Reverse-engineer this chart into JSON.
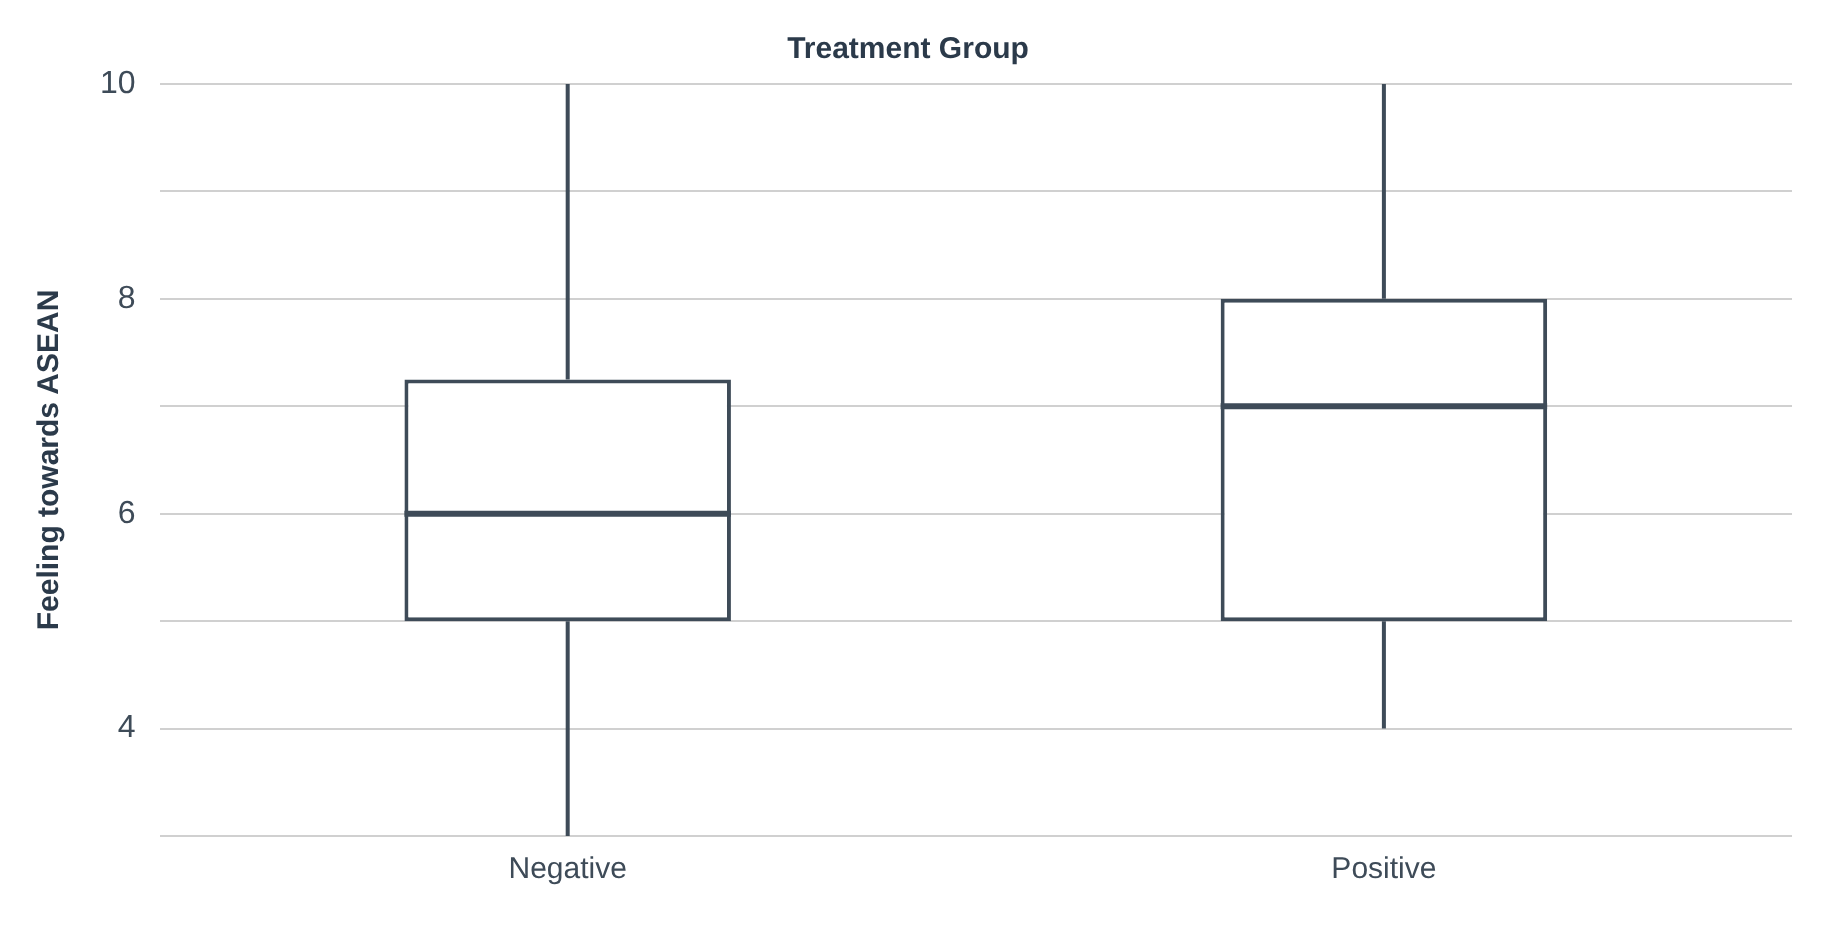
{
  "chart_data": {
    "type": "box",
    "xlabel": "Treatment Group",
    "ylabel": "Feeling towards ASEAN",
    "categories": [
      "Negative",
      "Positive"
    ],
    "color": "#3e4b58",
    "boxes": [
      {
        "low": 3,
        "q1": 5,
        "median": 6,
        "q3": 7.25,
        "high": 10
      },
      {
        "low": 4,
        "q1": 5,
        "median": 7,
        "q3": 8,
        "high": 10
      }
    ],
    "ylim": [
      3,
      10
    ],
    "yticks": [
      {
        "value": 3,
        "label": null
      },
      4,
      {
        "value": 5,
        "label": null
      },
      6,
      {
        "value": 7,
        "label": null
      },
      8,
      {
        "value": 9,
        "label": null
      },
      10
    ],
    "grid": "y",
    "legend": false
  }
}
